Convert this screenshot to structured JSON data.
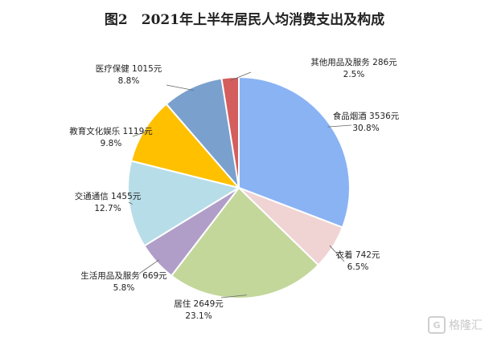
{
  "chart_data": {
    "type": "pie",
    "title": "图2　2021年上半年居民人均消费支出及构成",
    "slices": [
      {
        "name": "食品烟酒",
        "value": 3536,
        "unit": "元",
        "percent": "30.8%",
        "color": "#8ab3f4"
      },
      {
        "name": "衣着",
        "value": 742,
        "unit": "元",
        "percent": "6.5%",
        "color": "#f0d3d3"
      },
      {
        "name": "居住",
        "value": 2649,
        "unit": "元",
        "percent": "23.1%",
        "color": "#c3d79b"
      },
      {
        "name": "生活用品及服务",
        "value": 669,
        "unit": "元",
        "percent": "5.8%",
        "color": "#b09ec8"
      },
      {
        "name": "交通通信",
        "value": 1455,
        "unit": "元",
        "percent": "12.7%",
        "color": "#b7dde8"
      },
      {
        "name": "教育文化娱乐",
        "value": 1119,
        "unit": "元",
        "percent": "9.8%",
        "color": "#ffc000"
      },
      {
        "name": "医疗保健",
        "value": 1015,
        "unit": "元",
        "percent": "8.8%",
        "color": "#7aa0cd"
      },
      {
        "name": "其他用品及服务",
        "value": 286,
        "unit": "元",
        "percent": "2.5%",
        "color": "#d45d5d"
      }
    ]
  },
  "watermark": {
    "text": "格隆汇",
    "logo_char": "G"
  }
}
